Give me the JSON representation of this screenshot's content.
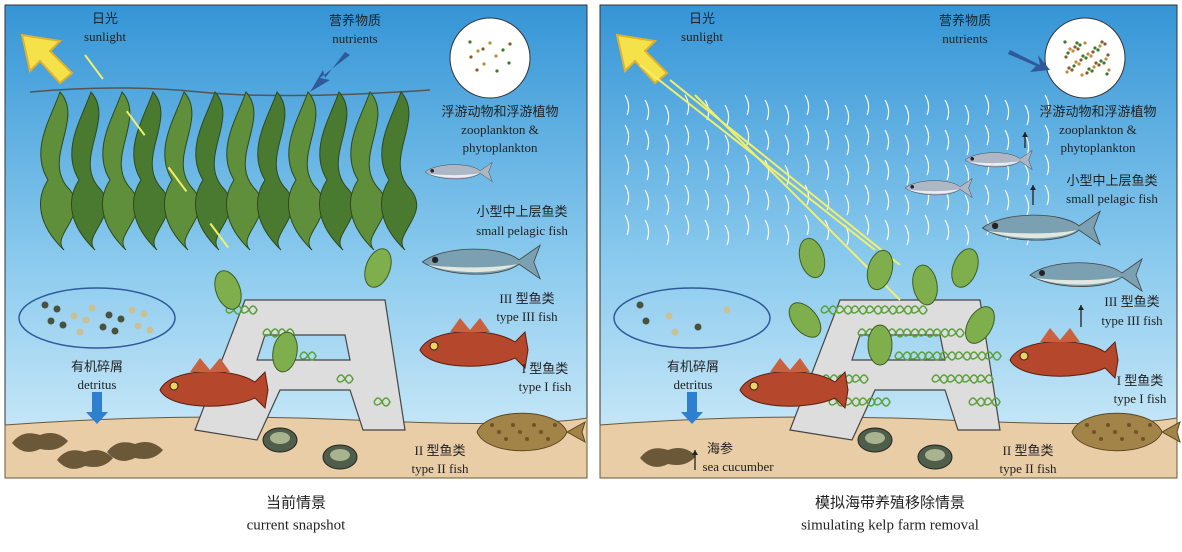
{
  "panels": [
    {
      "labels": {
        "sun_zh": "日光",
        "sun_en": "sunlight",
        "nutrients_zh": "营养物质",
        "nutrients_en": "nutrients",
        "plankton_zh": "浮游动物和浮游植物",
        "plankton_en1": "zooplankton &",
        "plankton_en2": "phytoplankton",
        "pelagic_zh": "小型中上层鱼类",
        "pelagic_en": "small pelagic fish",
        "type3_zh": "III 型鱼类",
        "type3_en": "type III fish",
        "detritus_zh": "有机碎屑",
        "detritus_en": "detritus",
        "type1_zh": "I 型鱼类",
        "type1_en": "type I fish",
        "type2_zh": "II 型鱼类",
        "type2_en": "type II fish"
      },
      "caption": {
        "zh": "当前情景",
        "en": "current snapshot"
      }
    },
    {
      "labels": {
        "sun_zh": "日光",
        "sun_en": "sunlight",
        "nutrients_zh": "营养物质",
        "nutrients_en": "nutrients",
        "plankton_zh": "浮游动物和浮游植物",
        "plankton_en1": "zooplankton &",
        "plankton_en2": "phytoplankton",
        "pelagic_zh": "小型中上层鱼类",
        "pelagic_en": "small pelagic fish",
        "type3_zh": "III 型鱼类",
        "type3_en": "type III fish",
        "detritus_zh": "有机碎屑",
        "detritus_en": "detritus",
        "type1_zh": "I 型鱼类",
        "type1_en": "type I fish",
        "cucumber_zh": "海参",
        "cucumber_en": "sea cucumber",
        "type2_zh": "II 型鱼类",
        "type2_en": "type II fish"
      },
      "caption": {
        "zh": "模拟海带养殖移除情景",
        "en": "simulating kelp farm removal"
      }
    }
  ]
}
